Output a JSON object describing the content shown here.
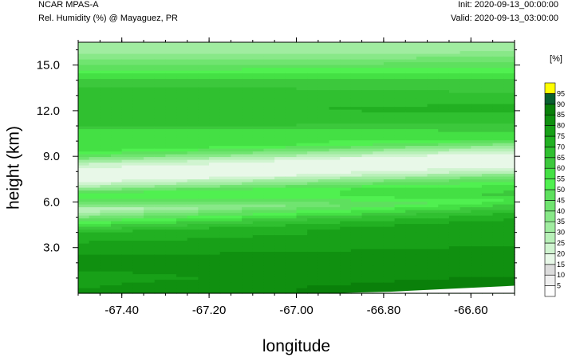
{
  "header": {
    "left_line1": "NCAR MPAS-A",
    "left_line2": "Rel. Humidity (%) @ Mayaguez, PR",
    "right_line1": "Init: 2020-09-13_00:00:00",
    "right_line2": "Valid: 2020-09-13_03:00:00"
  },
  "chart_data": {
    "type": "heatmap",
    "xlabel": "longitude",
    "ylabel": "height (km)",
    "xlim": [
      -67.5,
      -66.5
    ],
    "ylim": [
      0,
      16.5
    ],
    "x_ticks": [
      -67.4,
      -67.2,
      -67.0,
      -66.8,
      -66.6
    ],
    "x_tick_labels": [
      "-67.40",
      "-67.20",
      "-67.00",
      "-66.80",
      "-66.60"
    ],
    "y_ticks": [
      3,
      6,
      9,
      12,
      15
    ],
    "y_tick_labels": [
      "3.0",
      "6.0",
      "9.0",
      "12.0",
      "15.0"
    ],
    "colorbar": {
      "unit_label": "[%]",
      "levels": [
        5,
        10,
        15,
        20,
        25,
        30,
        35,
        40,
        45,
        50,
        55,
        60,
        65,
        70,
        75,
        80,
        85,
        90,
        95
      ],
      "level_labels": [
        "5",
        "10",
        "15",
        "20",
        "25",
        "30",
        "35",
        "40",
        "45",
        "50",
        "55",
        "60",
        "65",
        "70",
        "75",
        "80",
        "85",
        "90",
        "95"
      ],
      "colors": [
        "#ffffff",
        "#f0f0f0",
        "#dcdcdc",
        "#e8f8e8",
        "#d0f4d0",
        "#b8f0b8",
        "#a0eca0",
        "#88e888",
        "#70e470",
        "#5ee05e",
        "#50f050",
        "#44e044",
        "#3cc83c",
        "#30c030",
        "#22b022",
        "#18a018",
        "#109010",
        "#0a800a",
        "#0a6030",
        "#ffff00"
      ]
    },
    "profile": {
      "description_heights_km": [
        0.3,
        1.0,
        2.0,
        3.0,
        4.0,
        4.6,
        5.0,
        5.5,
        6.0,
        6.5,
        7.0,
        7.5,
        8.0,
        8.5,
        9.0,
        9.5,
        10.0,
        10.5,
        11.0,
        12.0,
        13.0,
        14.0,
        15.0,
        15.7,
        16.5
      ],
      "rh_west": [
        80,
        78,
        82,
        78,
        70,
        55,
        40,
        25,
        45,
        55,
        30,
        15,
        15,
        25,
        45,
        60,
        60,
        55,
        65,
        68,
        70,
        62,
        45,
        35,
        30
      ],
      "rh_east": [
        90,
        85,
        82,
        80,
        78,
        72,
        65,
        55,
        62,
        55,
        45,
        25,
        15,
        15,
        30,
        50,
        55,
        60,
        65,
        72,
        65,
        60,
        45,
        35,
        30
      ]
    },
    "terrain_height_km": [
      0,
      0,
      0,
      0,
      0,
      0.1,
      0.3,
      0.5
    ]
  }
}
